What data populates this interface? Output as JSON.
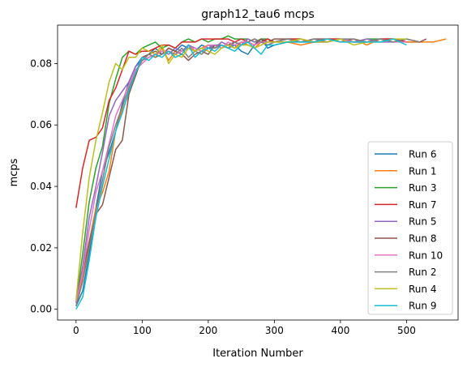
{
  "chart_data": {
    "type": "line",
    "title": "graph12_tau6 mcps",
    "xlabel": "Iteration Number",
    "ylabel": "mcps",
    "xlim": [
      -28,
      578
    ],
    "ylim": [
      -0.0035,
      0.0925
    ],
    "xticks": [
      0,
      100,
      200,
      300,
      400,
      500
    ],
    "yticks": [
      0.0,
      0.02,
      0.04,
      0.06,
      0.08
    ],
    "xtick_labels": [
      "0",
      "100",
      "200",
      "300",
      "400",
      "500"
    ],
    "ytick_labels": [
      "0.00",
      "0.02",
      "0.04",
      "0.06",
      "0.08"
    ],
    "grid": false,
    "legend_position": "lower-right",
    "series": [
      {
        "name": "Run 6",
        "color": "#1f77b4",
        "x": [
          0,
          10,
          20,
          30,
          40,
          50,
          60,
          70,
          80,
          90,
          100,
          110,
          120,
          130,
          140,
          150,
          160,
          170,
          180,
          190,
          200,
          210,
          220,
          230,
          240,
          250,
          260,
          270,
          280,
          290,
          300,
          320,
          340,
          360,
          380,
          400,
          420,
          440,
          460,
          480,
          500,
          520
        ],
        "y": [
          0.001,
          0.006,
          0.018,
          0.033,
          0.045,
          0.051,
          0.058,
          0.067,
          0.074,
          0.079,
          0.082,
          0.083,
          0.085,
          0.083,
          0.085,
          0.084,
          0.086,
          0.085,
          0.084,
          0.086,
          0.085,
          0.086,
          0.086,
          0.085,
          0.086,
          0.084,
          0.083,
          0.086,
          0.088,
          0.085,
          0.086,
          0.087,
          0.087,
          0.087,
          0.087,
          0.088,
          0.087,
          0.087,
          0.088,
          0.088,
          0.087,
          0.087
        ]
      },
      {
        "name": "Run 1",
        "color": "#ff7f0e",
        "x": [
          0,
          10,
          20,
          30,
          40,
          50,
          60,
          70,
          80,
          90,
          100,
          110,
          120,
          130,
          140,
          150,
          160,
          170,
          180,
          190,
          200,
          210,
          220,
          230,
          240,
          250,
          260,
          270,
          280,
          290,
          300,
          320,
          340,
          360,
          380,
          400,
          420,
          440,
          460,
          480,
          500,
          520,
          540,
          560
        ],
        "y": [
          0.002,
          0.01,
          0.022,
          0.033,
          0.038,
          0.045,
          0.058,
          0.065,
          0.07,
          0.077,
          0.081,
          0.083,
          0.082,
          0.085,
          0.081,
          0.084,
          0.083,
          0.086,
          0.084,
          0.085,
          0.086,
          0.085,
          0.087,
          0.086,
          0.085,
          0.087,
          0.086,
          0.085,
          0.087,
          0.088,
          0.087,
          0.087,
          0.086,
          0.087,
          0.088,
          0.087,
          0.088,
          0.086,
          0.088,
          0.088,
          0.087,
          0.087,
          0.087,
          0.088
        ]
      },
      {
        "name": "Run 3",
        "color": "#2ca02c",
        "x": [
          0,
          10,
          20,
          30,
          40,
          50,
          60,
          70,
          80,
          90,
          100,
          110,
          120,
          130,
          140,
          150,
          160,
          170,
          180,
          190,
          200,
          210,
          220,
          230,
          240,
          250,
          260,
          270,
          280,
          290,
          300,
          320,
          340,
          360,
          380,
          400,
          420,
          440,
          460,
          480,
          500
        ],
        "y": [
          0.002,
          0.018,
          0.035,
          0.046,
          0.053,
          0.067,
          0.075,
          0.082,
          0.084,
          0.083,
          0.085,
          0.086,
          0.087,
          0.085,
          0.086,
          0.085,
          0.087,
          0.088,
          0.087,
          0.088,
          0.087,
          0.088,
          0.088,
          0.089,
          0.088,
          0.088,
          0.088,
          0.087,
          0.088,
          0.088,
          0.087,
          0.088,
          0.088,
          0.087,
          0.088,
          0.088,
          0.087,
          0.088,
          0.088,
          0.087,
          0.088
        ]
      },
      {
        "name": "Run 7",
        "color": "#d62728",
        "x": [
          0,
          10,
          20,
          30,
          40,
          50,
          60,
          70,
          80,
          90,
          100,
          110,
          120,
          130,
          140,
          150,
          160,
          170,
          180,
          190,
          200,
          210,
          220,
          230,
          240,
          250,
          260,
          270,
          280,
          290,
          300,
          320,
          340,
          360,
          380,
          400,
          420,
          440,
          460,
          480,
          500
        ],
        "y": [
          0.033,
          0.046,
          0.055,
          0.056,
          0.059,
          0.068,
          0.072,
          0.078,
          0.084,
          0.083,
          0.084,
          0.084,
          0.085,
          0.086,
          0.086,
          0.085,
          0.087,
          0.087,
          0.087,
          0.088,
          0.088,
          0.088,
          0.088,
          0.088,
          0.087,
          0.088,
          0.087,
          0.088,
          0.087,
          0.088,
          0.087,
          0.088,
          0.088,
          0.087,
          0.088,
          0.088,
          0.087,
          0.087,
          0.088,
          0.088,
          0.087
        ]
      },
      {
        "name": "Run 5",
        "color": "#9467bd",
        "x": [
          0,
          10,
          20,
          30,
          40,
          50,
          60,
          70,
          80,
          90,
          100,
          110,
          120,
          130,
          140,
          150,
          160,
          170,
          180,
          190,
          200,
          210,
          220,
          230,
          240,
          250,
          260,
          270,
          280,
          290,
          300,
          320,
          340,
          360,
          380,
          400,
          420,
          440,
          460,
          480,
          500
        ],
        "y": [
          0.002,
          0.014,
          0.03,
          0.04,
          0.051,
          0.063,
          0.068,
          0.071,
          0.074,
          0.079,
          0.081,
          0.082,
          0.083,
          0.084,
          0.083,
          0.085,
          0.084,
          0.086,
          0.085,
          0.084,
          0.086,
          0.085,
          0.087,
          0.086,
          0.087,
          0.086,
          0.088,
          0.087,
          0.087,
          0.086,
          0.087,
          0.088,
          0.087,
          0.088,
          0.087,
          0.088,
          0.087,
          0.088,
          0.087,
          0.087,
          0.088
        ]
      },
      {
        "name": "Run 8",
        "color": "#8c564b",
        "x": [
          0,
          10,
          20,
          30,
          40,
          50,
          60,
          70,
          80,
          90,
          100,
          110,
          120,
          130,
          140,
          150,
          160,
          170,
          180,
          190,
          200,
          210,
          220,
          230,
          240,
          250,
          260,
          270,
          280,
          290,
          300,
          320,
          340,
          360,
          380,
          400,
          420,
          440,
          460,
          480,
          500,
          520,
          530
        ],
        "y": [
          0.002,
          0.012,
          0.022,
          0.031,
          0.034,
          0.043,
          0.052,
          0.055,
          0.07,
          0.076,
          0.082,
          0.083,
          0.084,
          0.083,
          0.085,
          0.084,
          0.083,
          0.081,
          0.083,
          0.084,
          0.083,
          0.086,
          0.085,
          0.086,
          0.087,
          0.086,
          0.087,
          0.086,
          0.088,
          0.087,
          0.088,
          0.088,
          0.087,
          0.088,
          0.088,
          0.087,
          0.088,
          0.087,
          0.088,
          0.087,
          0.088,
          0.087,
          0.088
        ]
      },
      {
        "name": "Run 10",
        "color": "#e377c2",
        "x": [
          0,
          10,
          20,
          30,
          40,
          50,
          60,
          70,
          80,
          90,
          100,
          110,
          120,
          130,
          140,
          150,
          160,
          170,
          180,
          190,
          200,
          210,
          220,
          230,
          240,
          250,
          260,
          270,
          280,
          290,
          300,
          320,
          340,
          360,
          380,
          400,
          420,
          440,
          460,
          480,
          500
        ],
        "y": [
          0.002,
          0.012,
          0.026,
          0.038,
          0.045,
          0.054,
          0.063,
          0.068,
          0.073,
          0.078,
          0.08,
          0.082,
          0.083,
          0.084,
          0.084,
          0.083,
          0.084,
          0.085,
          0.085,
          0.084,
          0.086,
          0.086,
          0.085,
          0.087,
          0.086,
          0.087,
          0.087,
          0.086,
          0.087,
          0.087,
          0.087,
          0.087,
          0.088,
          0.087,
          0.087,
          0.088,
          0.087,
          0.087,
          0.088,
          0.087,
          0.087
        ]
      },
      {
        "name": "Run 2",
        "color": "#7f7f7f",
        "x": [
          0,
          10,
          20,
          30,
          40,
          50,
          60,
          70,
          80,
          90,
          100,
          110,
          120,
          130,
          140,
          150,
          160,
          170,
          180,
          190,
          200,
          210,
          220,
          230,
          240,
          250,
          260,
          270,
          280,
          290,
          300,
          320,
          340,
          360,
          380,
          400,
          420,
          440,
          460,
          480,
          500,
          520
        ],
        "y": [
          0.001,
          0.009,
          0.02,
          0.032,
          0.042,
          0.053,
          0.06,
          0.066,
          0.072,
          0.077,
          0.081,
          0.083,
          0.082,
          0.083,
          0.084,
          0.083,
          0.085,
          0.082,
          0.084,
          0.083,
          0.085,
          0.085,
          0.086,
          0.085,
          0.087,
          0.086,
          0.087,
          0.088,
          0.087,
          0.086,
          0.087,
          0.088,
          0.087,
          0.088,
          0.087,
          0.088,
          0.088,
          0.087,
          0.088,
          0.087,
          0.088,
          0.087
        ]
      },
      {
        "name": "Run 4",
        "color": "#bcbd22",
        "x": [
          0,
          10,
          20,
          30,
          40,
          50,
          60,
          70,
          80,
          90,
          100,
          110,
          120,
          130,
          140,
          150,
          160,
          170,
          180,
          190,
          200,
          210,
          220,
          230,
          240,
          250,
          260,
          270,
          280,
          290,
          300,
          320,
          340,
          360,
          380,
          400,
          420,
          440,
          460,
          480,
          500
        ],
        "y": [
          0.003,
          0.025,
          0.043,
          0.055,
          0.064,
          0.074,
          0.08,
          0.078,
          0.082,
          0.082,
          0.085,
          0.084,
          0.083,
          0.086,
          0.08,
          0.083,
          0.082,
          0.085,
          0.084,
          0.085,
          0.084,
          0.083,
          0.085,
          0.086,
          0.085,
          0.086,
          0.086,
          0.085,
          0.086,
          0.087,
          0.087,
          0.087,
          0.088,
          0.087,
          0.087,
          0.088,
          0.086,
          0.087,
          0.087,
          0.088,
          0.088
        ]
      },
      {
        "name": "Run 9",
        "color": "#17becf",
        "x": [
          0,
          10,
          20,
          30,
          40,
          50,
          60,
          70,
          80,
          90,
          100,
          110,
          120,
          130,
          140,
          150,
          160,
          170,
          180,
          190,
          200,
          210,
          220,
          230,
          240,
          250,
          260,
          270,
          280,
          290,
          300,
          320,
          340,
          360,
          380,
          400,
          420,
          440,
          460,
          480,
          500
        ],
        "y": [
          0.0,
          0.004,
          0.016,
          0.03,
          0.04,
          0.049,
          0.058,
          0.064,
          0.071,
          0.077,
          0.082,
          0.081,
          0.083,
          0.082,
          0.084,
          0.082,
          0.083,
          0.086,
          0.082,
          0.084,
          0.085,
          0.084,
          0.086,
          0.085,
          0.084,
          0.086,
          0.087,
          0.085,
          0.083,
          0.086,
          0.086,
          0.087,
          0.087,
          0.087,
          0.088,
          0.087,
          0.087,
          0.087,
          0.087,
          0.088,
          0.086
        ]
      }
    ]
  }
}
